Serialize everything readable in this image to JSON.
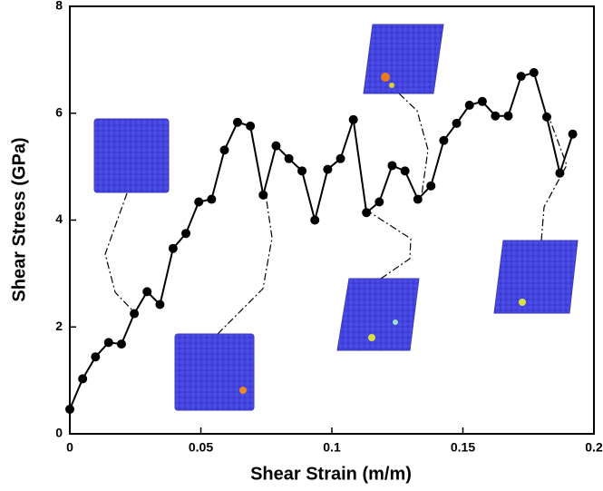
{
  "chart_data": {
    "type": "line",
    "x_label": "Shear Strain (m/m)",
    "y_label": "Shear Stress (GPa)",
    "x": [
      0,
      0.0049,
      0.0098,
      0.0148,
      0.0197,
      0.0246,
      0.0295,
      0.0344,
      0.0394,
      0.0443,
      0.0492,
      0.0541,
      0.059,
      0.064,
      0.0689,
      0.0738,
      0.0787,
      0.0836,
      0.0886,
      0.0935,
      0.0984,
      0.1033,
      0.1082,
      0.1132,
      0.1181,
      0.123,
      0.1279,
      0.1328,
      0.1378,
      0.1427,
      0.1476,
      0.1525,
      0.1574,
      0.1624,
      0.1673,
      0.1722,
      0.1771,
      0.182,
      0.187,
      0.1919
    ],
    "series": [
      {
        "color": "#000000",
        "values": [
          0.46,
          1.03,
          1.44,
          1.71,
          1.68,
          2.25,
          2.66,
          2.42,
          3.47,
          3.75,
          4.34,
          4.39,
          5.31,
          5.83,
          5.76,
          4.47,
          5.39,
          5.15,
          4.92,
          4.0,
          4.95,
          5.15,
          5.88,
          4.14,
          4.34,
          5.02,
          4.92,
          4.39,
          4.64,
          5.49,
          5.81,
          6.15,
          6.22,
          5.95,
          5.95,
          6.69,
          6.76,
          5.93,
          4.88,
          5.61
        ]
      }
    ],
    "xlim": [
      0,
      0.2
    ],
    "xticks": [
      0,
      0.05,
      0.1,
      0.15,
      0.2
    ],
    "ylim": [
      0,
      8
    ],
    "yticks": [
      0,
      2,
      4,
      6,
      8
    ]
  }
}
